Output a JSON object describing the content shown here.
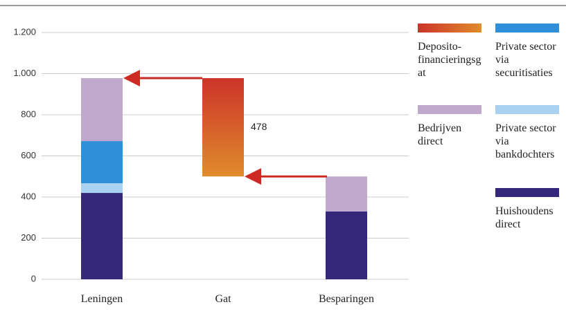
{
  "chart_data": {
    "type": "stacked_bar",
    "categories": [
      "Leningen",
      "Gat",
      "Besparingen"
    ],
    "series": [
      {
        "name": "Huishoudens direct",
        "color": "#35287a",
        "values": [
          420,
          null,
          330
        ]
      },
      {
        "name": "Private sector via bankdochters",
        "color": "#a9d1f2",
        "values": [
          47,
          null,
          null
        ]
      },
      {
        "name": "Private sector via securitisaties",
        "color": "#2f90d9",
        "values": [
          205,
          null,
          null
        ]
      },
      {
        "name": "Bedrijven direct",
        "color": "#c0a9cd",
        "values": [
          306,
          null,
          170
        ]
      },
      {
        "name": "Deposito-financieringsgat",
        "color": [
          "#cc3329",
          "#e08c2c"
        ],
        "values": [
          null,
          478,
          null
        ]
      }
    ],
    "ylim": [
      0,
      1200
    ],
    "yticks": [
      0,
      200,
      400,
      600,
      800,
      {
        "value": 1000,
        "label": "1.000"
      },
      {
        "value": 1200,
        "label": "1.200"
      }
    ],
    "grid": true
  }
}
